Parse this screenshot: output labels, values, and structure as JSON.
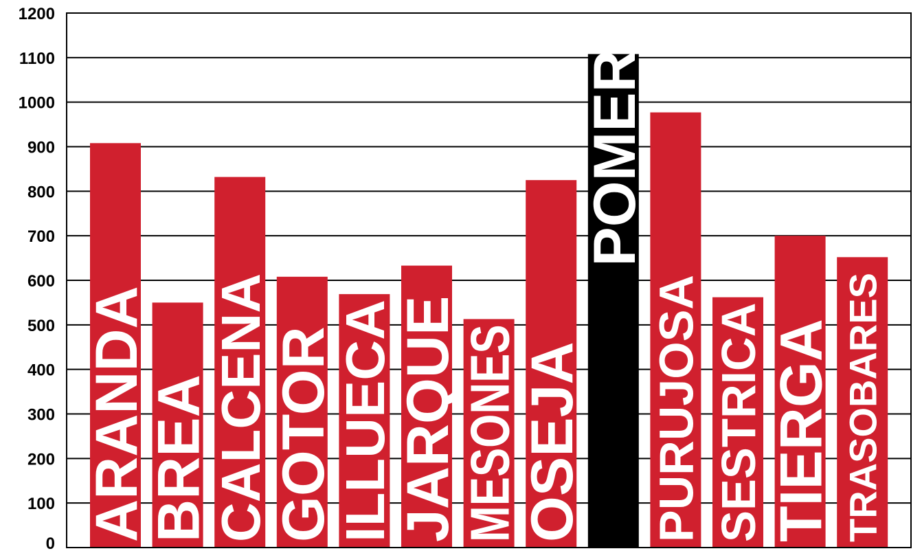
{
  "chart_data": {
    "type": "bar",
    "orientation": "vertical",
    "categories": [
      "ARANDA",
      "BREA",
      "CALCENA",
      "GOTOR",
      "ILLUECA",
      "JARQUE",
      "MESONES",
      "OSEJA",
      "POMER",
      "PURUJOSA",
      "SESTRICA",
      "TIERGA",
      "TRASOBARES"
    ],
    "values": [
      908,
      550,
      832,
      608,
      569,
      633,
      513,
      825,
      1108,
      977,
      562,
      700,
      652
    ],
    "highlight": "POMER",
    "colors": {
      "default": "#d0202e",
      "highlight": "#000000",
      "label": "#ffffff",
      "grid": "#000000"
    },
    "ylim": [
      0,
      1200
    ],
    "yticks": [
      "0",
      "100",
      "200",
      "300",
      "400",
      "500",
      "600",
      "700",
      "800",
      "900",
      "1000",
      "1100",
      "1200"
    ],
    "grid": true,
    "legend": "none",
    "title": "",
    "xlabel": "",
    "ylabel": ""
  }
}
